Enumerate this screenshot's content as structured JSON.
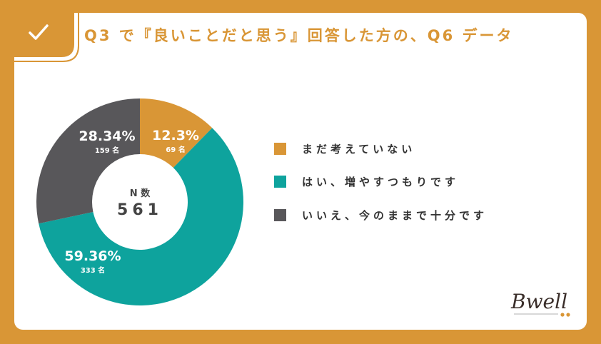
{
  "title": "Q3 で『良いことだと思う』回答した方の、Q6 データ",
  "check_icon": "checkmark-icon",
  "colors": {
    "orange": "#D99636",
    "teal": "#0EA39D",
    "gray": "#58575A"
  },
  "center": {
    "label": "N 数",
    "value": "561"
  },
  "logo": {
    "text": "Bwell"
  },
  "chart_data": {
    "type": "pie",
    "total": 561,
    "slices": [
      {
        "label": "まだ考えていない",
        "value": 12.3,
        "display": "12.3%",
        "count": 69,
        "count_label": "69 名",
        "color": "#D99636"
      },
      {
        "label": "はい、増やすつもりです",
        "value": 59.36,
        "display": "59.36%",
        "count": 333,
        "count_label": "333 名",
        "color": "#0EA39D"
      },
      {
        "label": "いいえ、今のままで十分です",
        "value": 28.34,
        "display": "28.34%",
        "count": 159,
        "count_label": "159 名",
        "color": "#58575A"
      }
    ]
  }
}
